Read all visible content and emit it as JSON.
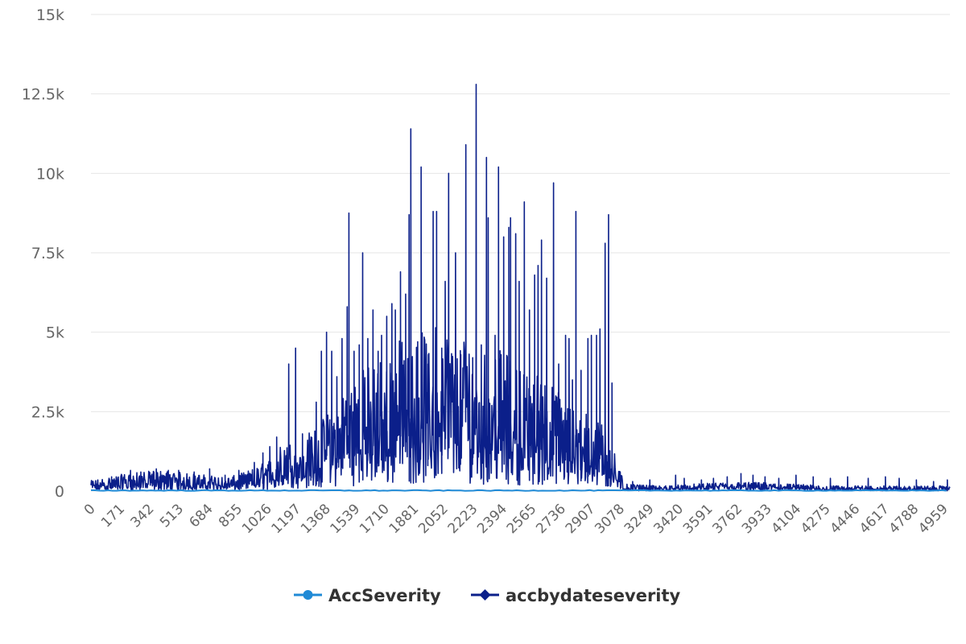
{
  "chart_data": {
    "type": "line",
    "title": "",
    "xlabel": "",
    "ylabel": "",
    "xlim": [
      0,
      4995
    ],
    "ylim": [
      0,
      15000
    ],
    "y_ticks": [
      {
        "value": 0,
        "label": "0"
      },
      {
        "value": 2500,
        "label": "2.5k"
      },
      {
        "value": 5000,
        "label": "5k"
      },
      {
        "value": 7500,
        "label": "7.5k"
      },
      {
        "value": 10000,
        "label": "10k"
      },
      {
        "value": 12500,
        "label": "12.5k"
      },
      {
        "value": 15000,
        "label": "15k"
      }
    ],
    "x_ticks": [
      "0",
      "171",
      "342",
      "513",
      "684",
      "855",
      "1026",
      "1197",
      "1368",
      "1539",
      "1710",
      "1881",
      "2052",
      "2223",
      "2394",
      "2565",
      "2736",
      "2907",
      "3078",
      "3249",
      "3420",
      "3591",
      "3762",
      "3933",
      "4104",
      "4275",
      "4446",
      "4617",
      "4788",
      "4959"
    ],
    "grid": true,
    "legend_position": "bottom-center",
    "series": [
      {
        "name": "AccSeverity",
        "color": "#1f8ad6",
        "marker": "circle",
        "values_description_envelope": [
          [
            0,
            0
          ],
          [
            4995,
            0
          ]
        ]
      },
      {
        "name": "accbydateseverity",
        "color": "#0b1f8a",
        "marker": "diamond",
        "envelope": [
          [
            0,
            300
          ],
          [
            100,
            400
          ],
          [
            200,
            500
          ],
          [
            300,
            550
          ],
          [
            400,
            600
          ],
          [
            500,
            550
          ],
          [
            600,
            500
          ],
          [
            700,
            450
          ],
          [
            800,
            400
          ],
          [
            900,
            550
          ],
          [
            1000,
            800
          ],
          [
            1050,
            1000
          ],
          [
            1100,
            1300
          ],
          [
            1200,
            1500
          ],
          [
            1300,
            1800
          ],
          [
            1400,
            2400
          ],
          [
            1500,
            3200
          ],
          [
            1600,
            3600
          ],
          [
            1700,
            4000
          ],
          [
            1800,
            4400
          ],
          [
            1900,
            4500
          ],
          [
            2000,
            4800
          ],
          [
            2100,
            4600
          ],
          [
            2200,
            4500
          ],
          [
            2300,
            4200
          ],
          [
            2400,
            4000
          ],
          [
            2500,
            3800
          ],
          [
            2600,
            3400
          ],
          [
            2700,
            3000
          ],
          [
            2800,
            2600
          ],
          [
            2900,
            2200
          ],
          [
            3000,
            2000
          ],
          [
            3100,
            200
          ],
          [
            3300,
            150
          ],
          [
            3500,
            200
          ],
          [
            3700,
            250
          ],
          [
            3900,
            250
          ],
          [
            4100,
            200
          ],
          [
            4300,
            150
          ],
          [
            4500,
            150
          ],
          [
            4700,
            150
          ],
          [
            4995,
            150
          ]
        ],
        "peaks": [
          [
            40,
            350
          ],
          [
            120,
            400
          ],
          [
            230,
            650
          ],
          [
            290,
            600
          ],
          [
            380,
            700
          ],
          [
            450,
            650
          ],
          [
            510,
            650
          ],
          [
            600,
            600
          ],
          [
            690,
            700
          ],
          [
            780,
            500
          ],
          [
            860,
            650
          ],
          [
            950,
            900
          ],
          [
            1000,
            1200
          ],
          [
            1040,
            1400
          ],
          [
            1080,
            1700
          ],
          [
            1150,
            4000
          ],
          [
            1190,
            4500
          ],
          [
            1230,
            1800
          ],
          [
            1280,
            1700
          ],
          [
            1310,
            2800
          ],
          [
            1340,
            4400
          ],
          [
            1370,
            5000
          ],
          [
            1400,
            4400
          ],
          [
            1430,
            3600
          ],
          [
            1460,
            4800
          ],
          [
            1490,
            5800
          ],
          [
            1500,
            8750
          ],
          [
            1530,
            4400
          ],
          [
            1560,
            4600
          ],
          [
            1580,
            7500
          ],
          [
            1610,
            4800
          ],
          [
            1640,
            5700
          ],
          [
            1670,
            4400
          ],
          [
            1690,
            4900
          ],
          [
            1720,
            5500
          ],
          [
            1750,
            5900
          ],
          [
            1770,
            5700
          ],
          [
            1800,
            6900
          ],
          [
            1830,
            6200
          ],
          [
            1850,
            8700
          ],
          [
            1860,
            11400
          ],
          [
            1900,
            4700
          ],
          [
            1920,
            10200
          ],
          [
            1960,
            4000
          ],
          [
            1990,
            8800
          ],
          [
            2010,
            8800
          ],
          [
            2040,
            4500
          ],
          [
            2060,
            6600
          ],
          [
            2080,
            10000
          ],
          [
            2120,
            7500
          ],
          [
            2150,
            4200
          ],
          [
            2180,
            10900
          ],
          [
            2220,
            4200
          ],
          [
            2240,
            12800
          ],
          [
            2270,
            4600
          ],
          [
            2300,
            10500
          ],
          [
            2310,
            8600
          ],
          [
            2350,
            4900
          ],
          [
            2370,
            10200
          ],
          [
            2400,
            8000
          ],
          [
            2430,
            8300
          ],
          [
            2440,
            8600
          ],
          [
            2470,
            8100
          ],
          [
            2490,
            6600
          ],
          [
            2520,
            9100
          ],
          [
            2550,
            5700
          ],
          [
            2580,
            6800
          ],
          [
            2600,
            7100
          ],
          [
            2620,
            7900
          ],
          [
            2650,
            6700
          ],
          [
            2690,
            9700
          ],
          [
            2720,
            4000
          ],
          [
            2760,
            4900
          ],
          [
            2780,
            4800
          ],
          [
            2800,
            3500
          ],
          [
            2820,
            8800
          ],
          [
            2850,
            3800
          ],
          [
            2890,
            4800
          ],
          [
            2910,
            4900
          ],
          [
            2940,
            4900
          ],
          [
            2960,
            5100
          ],
          [
            2990,
            7800
          ],
          [
            3010,
            8700
          ],
          [
            3030,
            3400
          ],
          [
            3080,
            400
          ],
          [
            3150,
            300
          ],
          [
            3250,
            350
          ],
          [
            3400,
            500
          ],
          [
            3450,
            400
          ],
          [
            3550,
            350
          ],
          [
            3620,
            400
          ],
          [
            3700,
            450
          ],
          [
            3780,
            550
          ],
          [
            3850,
            500
          ],
          [
            3920,
            450
          ],
          [
            4000,
            400
          ],
          [
            4100,
            500
          ],
          [
            4200,
            450
          ],
          [
            4300,
            400
          ],
          [
            4400,
            450
          ],
          [
            4520,
            400
          ],
          [
            4620,
            450
          ],
          [
            4700,
            400
          ],
          [
            4800,
            350
          ],
          [
            4900,
            300
          ],
          [
            4980,
            350
          ]
        ]
      }
    ]
  }
}
